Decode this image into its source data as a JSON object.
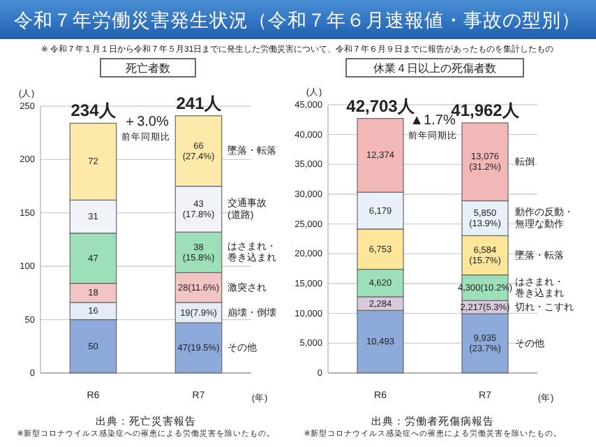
{
  "chart_data": [
    {
      "type": "bar",
      "stacked": true,
      "title": "死亡者数",
      "ylabel": "(人)",
      "xlabel": "(年)",
      "categories": [
        "R6",
        "R7"
      ],
      "ylim": [
        0,
        250
      ],
      "yticks": [
        0,
        50,
        100,
        150,
        200,
        250
      ],
      "grid": "y",
      "totals": [
        "234人",
        "241人"
      ],
      "series": [
        {
          "name": "その他",
          "color": "#8eaadb",
          "values": [
            50,
            47
          ],
          "value_labels": [
            "50",
            "47(19.5%)"
          ]
        },
        {
          "name": "崩壊・倒壊",
          "color": "#e4ecf7",
          "values": [
            16,
            19
          ],
          "value_labels": [
            "16",
            "19(7.9%)"
          ]
        },
        {
          "name": "激突され",
          "color": "#f2c4c4",
          "values": [
            18,
            28
          ],
          "value_labels": [
            "18",
            "28(11.6%)"
          ]
        },
        {
          "name": "はさまれ・巻き込まれ",
          "color": "#9ddfb8",
          "values": [
            47,
            38
          ],
          "value_labels": [
            "47",
            "38\n(15.8%)"
          ]
        },
        {
          "name": "交通事故(道路)",
          "color": "#f0f4f8",
          "values": [
            31,
            43
          ],
          "value_labels": [
            "31",
            "43\n(17.8%)"
          ]
        },
        {
          "name": "墜落・転落",
          "color": "#fde9a9",
          "values": [
            72,
            66
          ],
          "value_labels": [
            "72",
            "66\n(27.4%)"
          ]
        }
      ],
      "annotations": [
        "令和７年労働災害発生状況（令和７年６月速報値・事故の型別）",
        "※ 令和７年１月１日から令和７年５月31日までに発生した労働災害について、令和７年６月９日までに報告があったものを集計したもの",
        "＋3.0%",
        "前年同期比",
        "出典：死亡災害報告",
        "※新型コロナウイルス感染症への罹患による労働災害を除いたもの。"
      ]
    },
    {
      "type": "bar",
      "stacked": true,
      "title": "休業４日以上の死傷者数",
      "ylabel": "(人)",
      "xlabel": "(年)",
      "categories": [
        "R6",
        "R7"
      ],
      "ylim": [
        0,
        45000
      ],
      "yticks": [
        0,
        {
          "value": 5000,
          "label": "5,000"
        },
        {
          "value": 10000,
          "label": "10,000"
        },
        {
          "value": 15000,
          "label": "15,000"
        },
        {
          "value": 20000,
          "label": "20,000"
        },
        {
          "value": 25000,
          "label": "25,000"
        },
        {
          "value": 30000,
          "label": "30,000"
        },
        {
          "value": 35000,
          "label": "35,000"
        },
        {
          "value": 40000,
          "label": "40,000"
        },
        {
          "value": 45000,
          "label": "45,000"
        }
      ],
      "grid": "y",
      "totals": [
        "42,703人",
        "41,962人"
      ],
      "series": [
        {
          "name": "その他",
          "color": "#8eaadb",
          "values": [
            10493,
            9935
          ],
          "value_labels": [
            "10,493",
            "9,935\n(23.7%)"
          ]
        },
        {
          "name": "切れ・こすれ",
          "color": "#d9c9dc",
          "values": [
            2284,
            2217
          ],
          "value_labels": [
            "2,284",
            "2,217(5.3%)"
          ]
        },
        {
          "name": "はさまれ・巻き込まれ",
          "color": "#9ddfb8",
          "values": [
            4620,
            4300
          ],
          "value_labels": [
            "4,620",
            "4,300(10.2%)"
          ]
        },
        {
          "name": "墜落・転落",
          "color": "#fde59a",
          "values": [
            6753,
            6584
          ],
          "value_labels": [
            "6,753",
            "6,584\n(15.7%)"
          ]
        },
        {
          "name": "動作の反動・無理な動作",
          "color": "#e8f0fa",
          "values": [
            6179,
            5850
          ],
          "value_labels": [
            "6,179",
            "5,850\n(13.9%)"
          ]
        },
        {
          "name": "転倒",
          "color": "#f2b8b8",
          "values": [
            12374,
            13076
          ],
          "value_labels": [
            "12,374",
            "13,076\n(31.2%)"
          ]
        }
      ],
      "annotations": [
        "▲1.7%",
        "前年同期比",
        "出典：労働者死傷病報告",
        "※新型コロナウイルス感染症への罹患による労働災害を除いたもの。"
      ]
    }
  ]
}
